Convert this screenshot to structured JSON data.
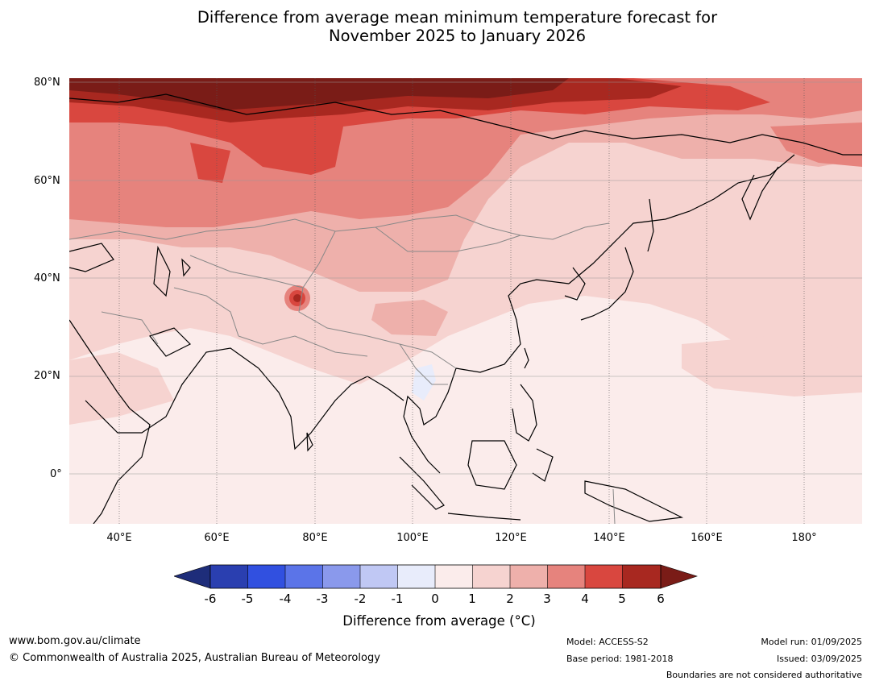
{
  "title_line1": "Difference from average mean minimum temperature forecast for",
  "title_line2": "November 2025 to January 2026",
  "y_axis_labels": [
    "80°N",
    "60°N",
    "40°N",
    "20°N",
    "0°"
  ],
  "x_axis_labels": [
    "40°E",
    "60°E",
    "80°E",
    "100°E",
    "120°E",
    "140°E",
    "160°E",
    "180°"
  ],
  "legend": {
    "title": "Difference from average (°C)",
    "ticks": [
      "-6",
      "-5",
      "-4",
      "-3",
      "-2",
      "-1",
      "0",
      "1",
      "2",
      "3",
      "4",
      "5",
      "6"
    ],
    "colors": [
      "#1e2d7a",
      "#2a3fb0",
      "#3150e0",
      "#5b74e8",
      "#8a99ec",
      "#c0c8f4",
      "#e8ecfb",
      "#fbeceb",
      "#f6d3d0",
      "#eeb0ab",
      "#e6837d",
      "#d9473f",
      "#a82820",
      "#7a1c17"
    ]
  },
  "map": {
    "region": "Asia and western Pacific",
    "lon_range": [
      30,
      192
    ],
    "lat_range": [
      -10,
      80
    ]
  },
  "footer": {
    "url": "www.bom.gov.au/climate",
    "copyright": "© Commonwealth of Australia 2025, Australian Bureau of Meteorology",
    "model": "Model: ACCESS-S2",
    "base_period": "Base period: 1981-2018",
    "model_run": "Model run: 01/09/2025",
    "issued": "Issued: 03/09/2025",
    "disclaimer": "Boundaries are not considered authoritative"
  }
}
